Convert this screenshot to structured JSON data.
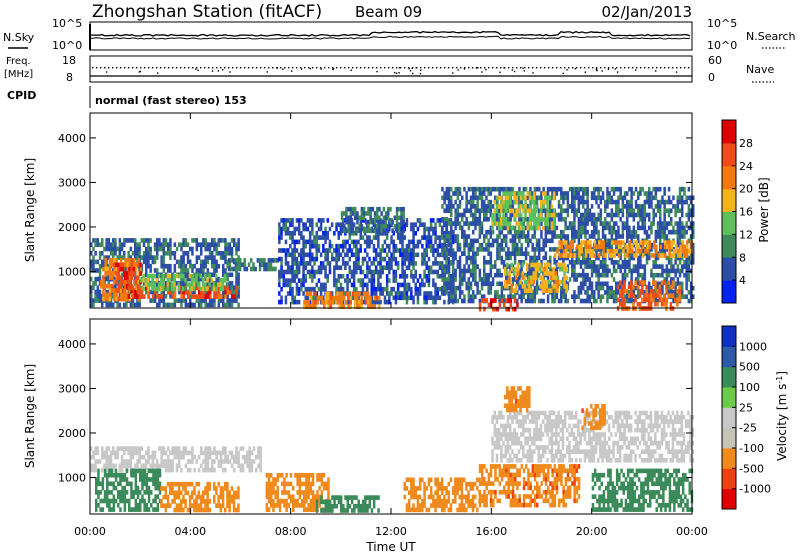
{
  "header": {
    "station": "Zhongshan Station (fitACF)",
    "beam": "Beam 09",
    "date": "02/Jan/2013"
  },
  "params_panel": {
    "nsky_label": "N.Sky",
    "nsearch_label": "N.Search",
    "noise_ticks_left": [
      "10^5",
      "10^0"
    ],
    "noise_ticks_right": [
      "10^5",
      "10^0"
    ],
    "freq_label": "Freq.",
    "freq_unit": "[MHz]",
    "freq_ticks": [
      "18",
      "8"
    ],
    "nave_label": "Nave",
    "nave_ticks": [
      "60",
      "0"
    ],
    "cpid_label": "CPID",
    "cpid_text": "normal (fast stereo) 153"
  },
  "colors": {
    "power": [
      "#0022ee",
      "#2c4ea6",
      "#3e8a5a",
      "#5ec05a",
      "#f4b21c",
      "#f07a10",
      "#ee4a1a",
      "#dd0000"
    ],
    "velocity": [
      "#e00000",
      "#f04010",
      "#f08a1c",
      "#c4c4b8",
      "#c8c8c8",
      "#6ccc4a",
      "#3a8a5a",
      "#2c5aa6",
      "#1030c4"
    ],
    "ground_scatter": "#c8c8c0"
  },
  "chart_data": [
    {
      "type": "heatmap",
      "name": "power-panel",
      "ylabel": "Slant Range [km]",
      "y_ticks": [
        "1000",
        "2000",
        "3000",
        "4000"
      ],
      "ylim": [
        180,
        4560
      ],
      "xlim": [
        0,
        24
      ],
      "colorbar_label": "Power [dB]",
      "colorbar_ticks": [
        "4",
        "8",
        "12",
        "16",
        "20",
        "24",
        "28"
      ],
      "colorbar_range": [
        0,
        32
      ],
      "regions": [
        {
          "t0": 0.0,
          "t1": 5.9,
          "r0": 250,
          "r1": 1750,
          "v": 7
        },
        {
          "t0": 0.4,
          "t1": 2.0,
          "r0": 400,
          "r1": 1300,
          "v": 22
        },
        {
          "t0": 1.0,
          "t1": 2.0,
          "r0": 600,
          "r1": 1200,
          "v": 27
        },
        {
          "t0": 1.5,
          "t1": 5.8,
          "r0": 420,
          "r1": 680,
          "v": 26
        },
        {
          "t0": 2.0,
          "t1": 5.5,
          "r0": 650,
          "r1": 950,
          "v": 14
        },
        {
          "t0": 5.5,
          "t1": 7.5,
          "r0": 1100,
          "r1": 1300,
          "v": 9
        },
        {
          "t0": 7.5,
          "t1": 14.5,
          "r0": 300,
          "r1": 2200,
          "v": 6
        },
        {
          "t0": 8.5,
          "t1": 11.5,
          "r0": 250,
          "r1": 550,
          "v": 22
        },
        {
          "t0": 10.0,
          "t1": 12.5,
          "r0": 1900,
          "r1": 2450,
          "v": 8
        },
        {
          "t0": 14.0,
          "t1": 24.0,
          "r0": 300,
          "r1": 2900,
          "v": 7
        },
        {
          "t0": 15.5,
          "t1": 17.0,
          "r0": 200,
          "r1": 400,
          "v": 27
        },
        {
          "t0": 16.5,
          "t1": 19.0,
          "r0": 600,
          "r1": 1200,
          "v": 18
        },
        {
          "t0": 18.5,
          "t1": 24.0,
          "r0": 1350,
          "r1": 1700,
          "v": 20
        },
        {
          "t0": 16.0,
          "t1": 18.5,
          "r0": 2000,
          "r1": 2800,
          "v": 15
        },
        {
          "t0": 21.0,
          "t1": 23.5,
          "r0": 200,
          "r1": 800,
          "v": 24
        }
      ]
    },
    {
      "type": "heatmap",
      "name": "velocity-panel",
      "ylabel": "Slant Range [km]",
      "y_ticks": [
        "1000",
        "2000",
        "3000",
        "4000"
      ],
      "ylim": [
        180,
        4560
      ],
      "xlim": [
        0,
        24
      ],
      "xlabel": "Time UT",
      "x_ticks": [
        "00:00",
        "04:00",
        "08:00",
        "12:00",
        "16:00",
        "20:00",
        "00:00"
      ],
      "colorbar_label": "Velocity [m s^-1]",
      "colorbar_ticks": [
        "-1000",
        "-500",
        "-100",
        "-25",
        "25",
        "100",
        "500",
        "1000"
      ],
      "regions": [
        {
          "t0": 0.0,
          "t1": 6.8,
          "r0": 1150,
          "r1": 1700,
          "v": 0
        },
        {
          "t0": 0.2,
          "t1": 2.8,
          "r0": 250,
          "r1": 1200,
          "v": 300
        },
        {
          "t0": 2.8,
          "t1": 5.9,
          "r0": 250,
          "r1": 900,
          "v": -150
        },
        {
          "t0": 7.0,
          "t1": 9.5,
          "r0": 300,
          "r1": 1100,
          "v": -300
        },
        {
          "t0": 9.0,
          "t1": 11.5,
          "r0": 250,
          "r1": 600,
          "v": 300
        },
        {
          "t0": 12.5,
          "t1": 15.5,
          "r0": 300,
          "r1": 1000,
          "v": -300
        },
        {
          "t0": 15.5,
          "t1": 19.5,
          "r0": 400,
          "r1": 1300,
          "v": -400
        },
        {
          "t0": 16.0,
          "t1": 24.0,
          "r0": 1350,
          "r1": 2500,
          "v": 0
        },
        {
          "t0": 16.5,
          "t1": 17.5,
          "r0": 2500,
          "r1": 3050,
          "v": -400
        },
        {
          "t0": 19.5,
          "t1": 20.5,
          "r0": 2150,
          "r1": 2650,
          "v": -400
        },
        {
          "t0": 20.0,
          "t1": 24.0,
          "r0": 250,
          "r1": 1200,
          "v": 300
        }
      ]
    }
  ]
}
